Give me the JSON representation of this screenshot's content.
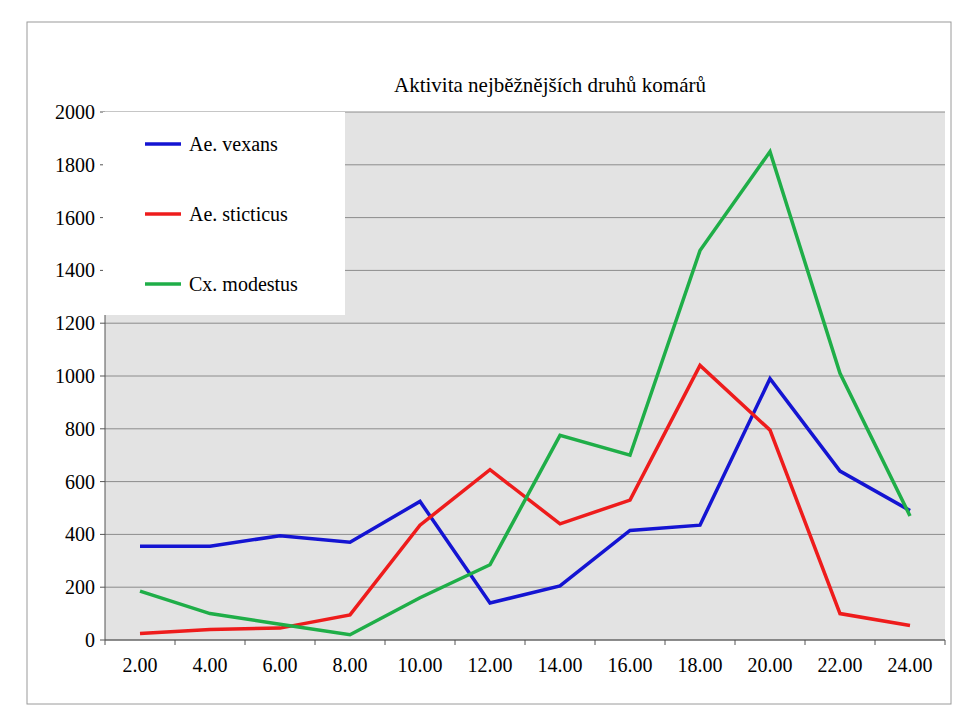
{
  "chart_data": {
    "type": "line",
    "title": "Aktivita nejběžnějších druhů komárů",
    "categories": [
      "2.00",
      "4.00",
      "6.00",
      "8.00",
      "10.00",
      "12.00",
      "14.00",
      "16.00",
      "18.00",
      "20.00",
      "22.00",
      "24.00"
    ],
    "series": [
      {
        "name": "Ae. vexans",
        "color": "#1414d2",
        "values": [
          355,
          355,
          395,
          370,
          525,
          140,
          205,
          415,
          435,
          990,
          640,
          490
        ]
      },
      {
        "name": "Ae. sticticus",
        "color": "#ee1c1c",
        "values": [
          25,
          40,
          45,
          95,
          435,
          645,
          440,
          530,
          1040,
          795,
          100,
          55
        ]
      },
      {
        "name": "Cx. modestus",
        "color": "#1fae48",
        "values": [
          185,
          100,
          60,
          20,
          160,
          285,
          775,
          700,
          1475,
          1850,
          1010,
          470
        ]
      }
    ],
    "ylim": [
      0,
      2000
    ],
    "yticks": [
      0,
      200,
      400,
      600,
      800,
      1000,
      1200,
      1400,
      1600,
      1800,
      2000
    ],
    "grid": true,
    "legend": "upper left"
  }
}
